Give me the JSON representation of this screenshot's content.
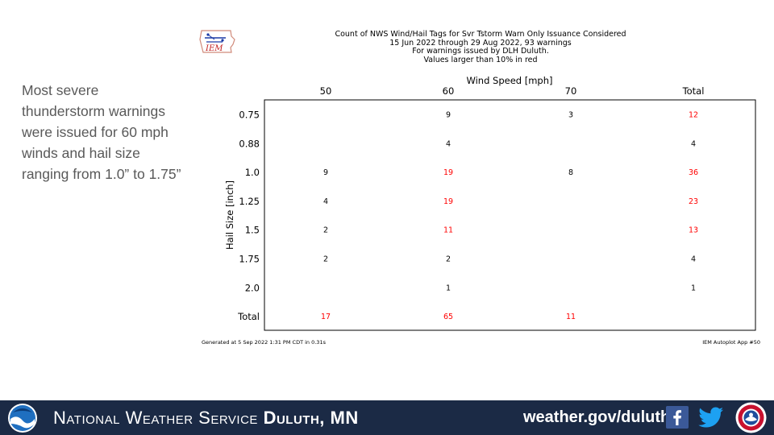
{
  "slide": {
    "side_text": "Most severe thunderstorm warnings were issued for 60 mph winds and hail size ranging from 1.0” to 1.75”"
  },
  "chart_title_lines": [
    "Count of NWS Wind/Hail Tags for Svr Tstorm Warn Only Issuance Considered",
    "15 Jun 2022 through 29 Aug 2022, 93 warnings",
    "For warnings issued by DLH Duluth.",
    "Values larger than 10% in red"
  ],
  "chart_data": {
    "type": "table",
    "xlabel": "Wind Speed [mph]",
    "ylabel": "Hail Size [inch]",
    "columns": [
      "50",
      "60",
      "70",
      "Total"
    ],
    "rows": [
      "0.75",
      "0.88",
      "1.0",
      "1.25",
      "1.5",
      "1.75",
      "2.0",
      "Total"
    ],
    "cells": [
      [
        "",
        "9",
        "3",
        "12"
      ],
      [
        "",
        "4",
        "",
        "4"
      ],
      [
        "9",
        "19",
        "8",
        "36"
      ],
      [
        "4",
        "19",
        "",
        "23"
      ],
      [
        "2",
        "11",
        "",
        "13"
      ],
      [
        "2",
        "2",
        "",
        "4"
      ],
      [
        "",
        "1",
        "",
        "1"
      ],
      [
        "17",
        "65",
        "11",
        ""
      ]
    ],
    "highlight": [
      [
        false,
        false,
        false,
        true
      ],
      [
        false,
        false,
        false,
        false
      ],
      [
        false,
        true,
        false,
        true
      ],
      [
        false,
        true,
        false,
        true
      ],
      [
        false,
        true,
        false,
        true
      ],
      [
        false,
        false,
        false,
        false
      ],
      [
        false,
        false,
        false,
        false
      ],
      [
        true,
        true,
        true,
        false
      ]
    ],
    "highlight_color": "#ff0000",
    "normal_color": "#000000"
  },
  "generated_note": "Generated at 5 Sep 2022 1:31 PM CDT in 0.31s",
  "app_note": "IEM Autoplot App #50",
  "iem_logo_text": "IEM",
  "footer": {
    "office_prefix": "National Weather Service",
    "office_city": "Duluth, MN",
    "website": "weather.gov/duluth",
    "background": "#1b2a45"
  },
  "icons": {
    "noaa": "noaa-logo-icon",
    "facebook": "facebook-icon",
    "twitter": "twitter-icon",
    "nws": "nws-logo-icon"
  }
}
